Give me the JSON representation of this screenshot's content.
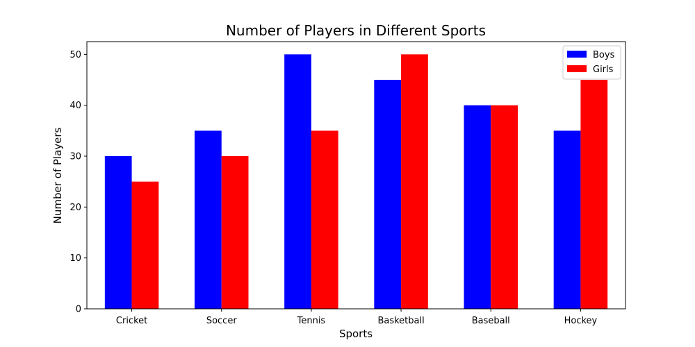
{
  "chart_data": {
    "type": "bar",
    "title": "Number of Players in Different Sports",
    "xlabel": "Sports",
    "ylabel": "Number of Players",
    "categories": [
      "Cricket",
      "Soccer",
      "Tennis",
      "Basketball",
      "Baseball",
      "Hockey"
    ],
    "series": [
      {
        "name": "Boys",
        "color": "#0000ff",
        "values": [
          30,
          35,
          50,
          45,
          40,
          35
        ]
      },
      {
        "name": "Girls",
        "color": "#ff0000",
        "values": [
          25,
          30,
          35,
          50,
          40,
          45
        ]
      }
    ],
    "ylim": [
      0,
      52.5
    ],
    "yticks": [
      0,
      10,
      20,
      30,
      40,
      50
    ],
    "grid": false,
    "legend_position": "top-right"
  }
}
